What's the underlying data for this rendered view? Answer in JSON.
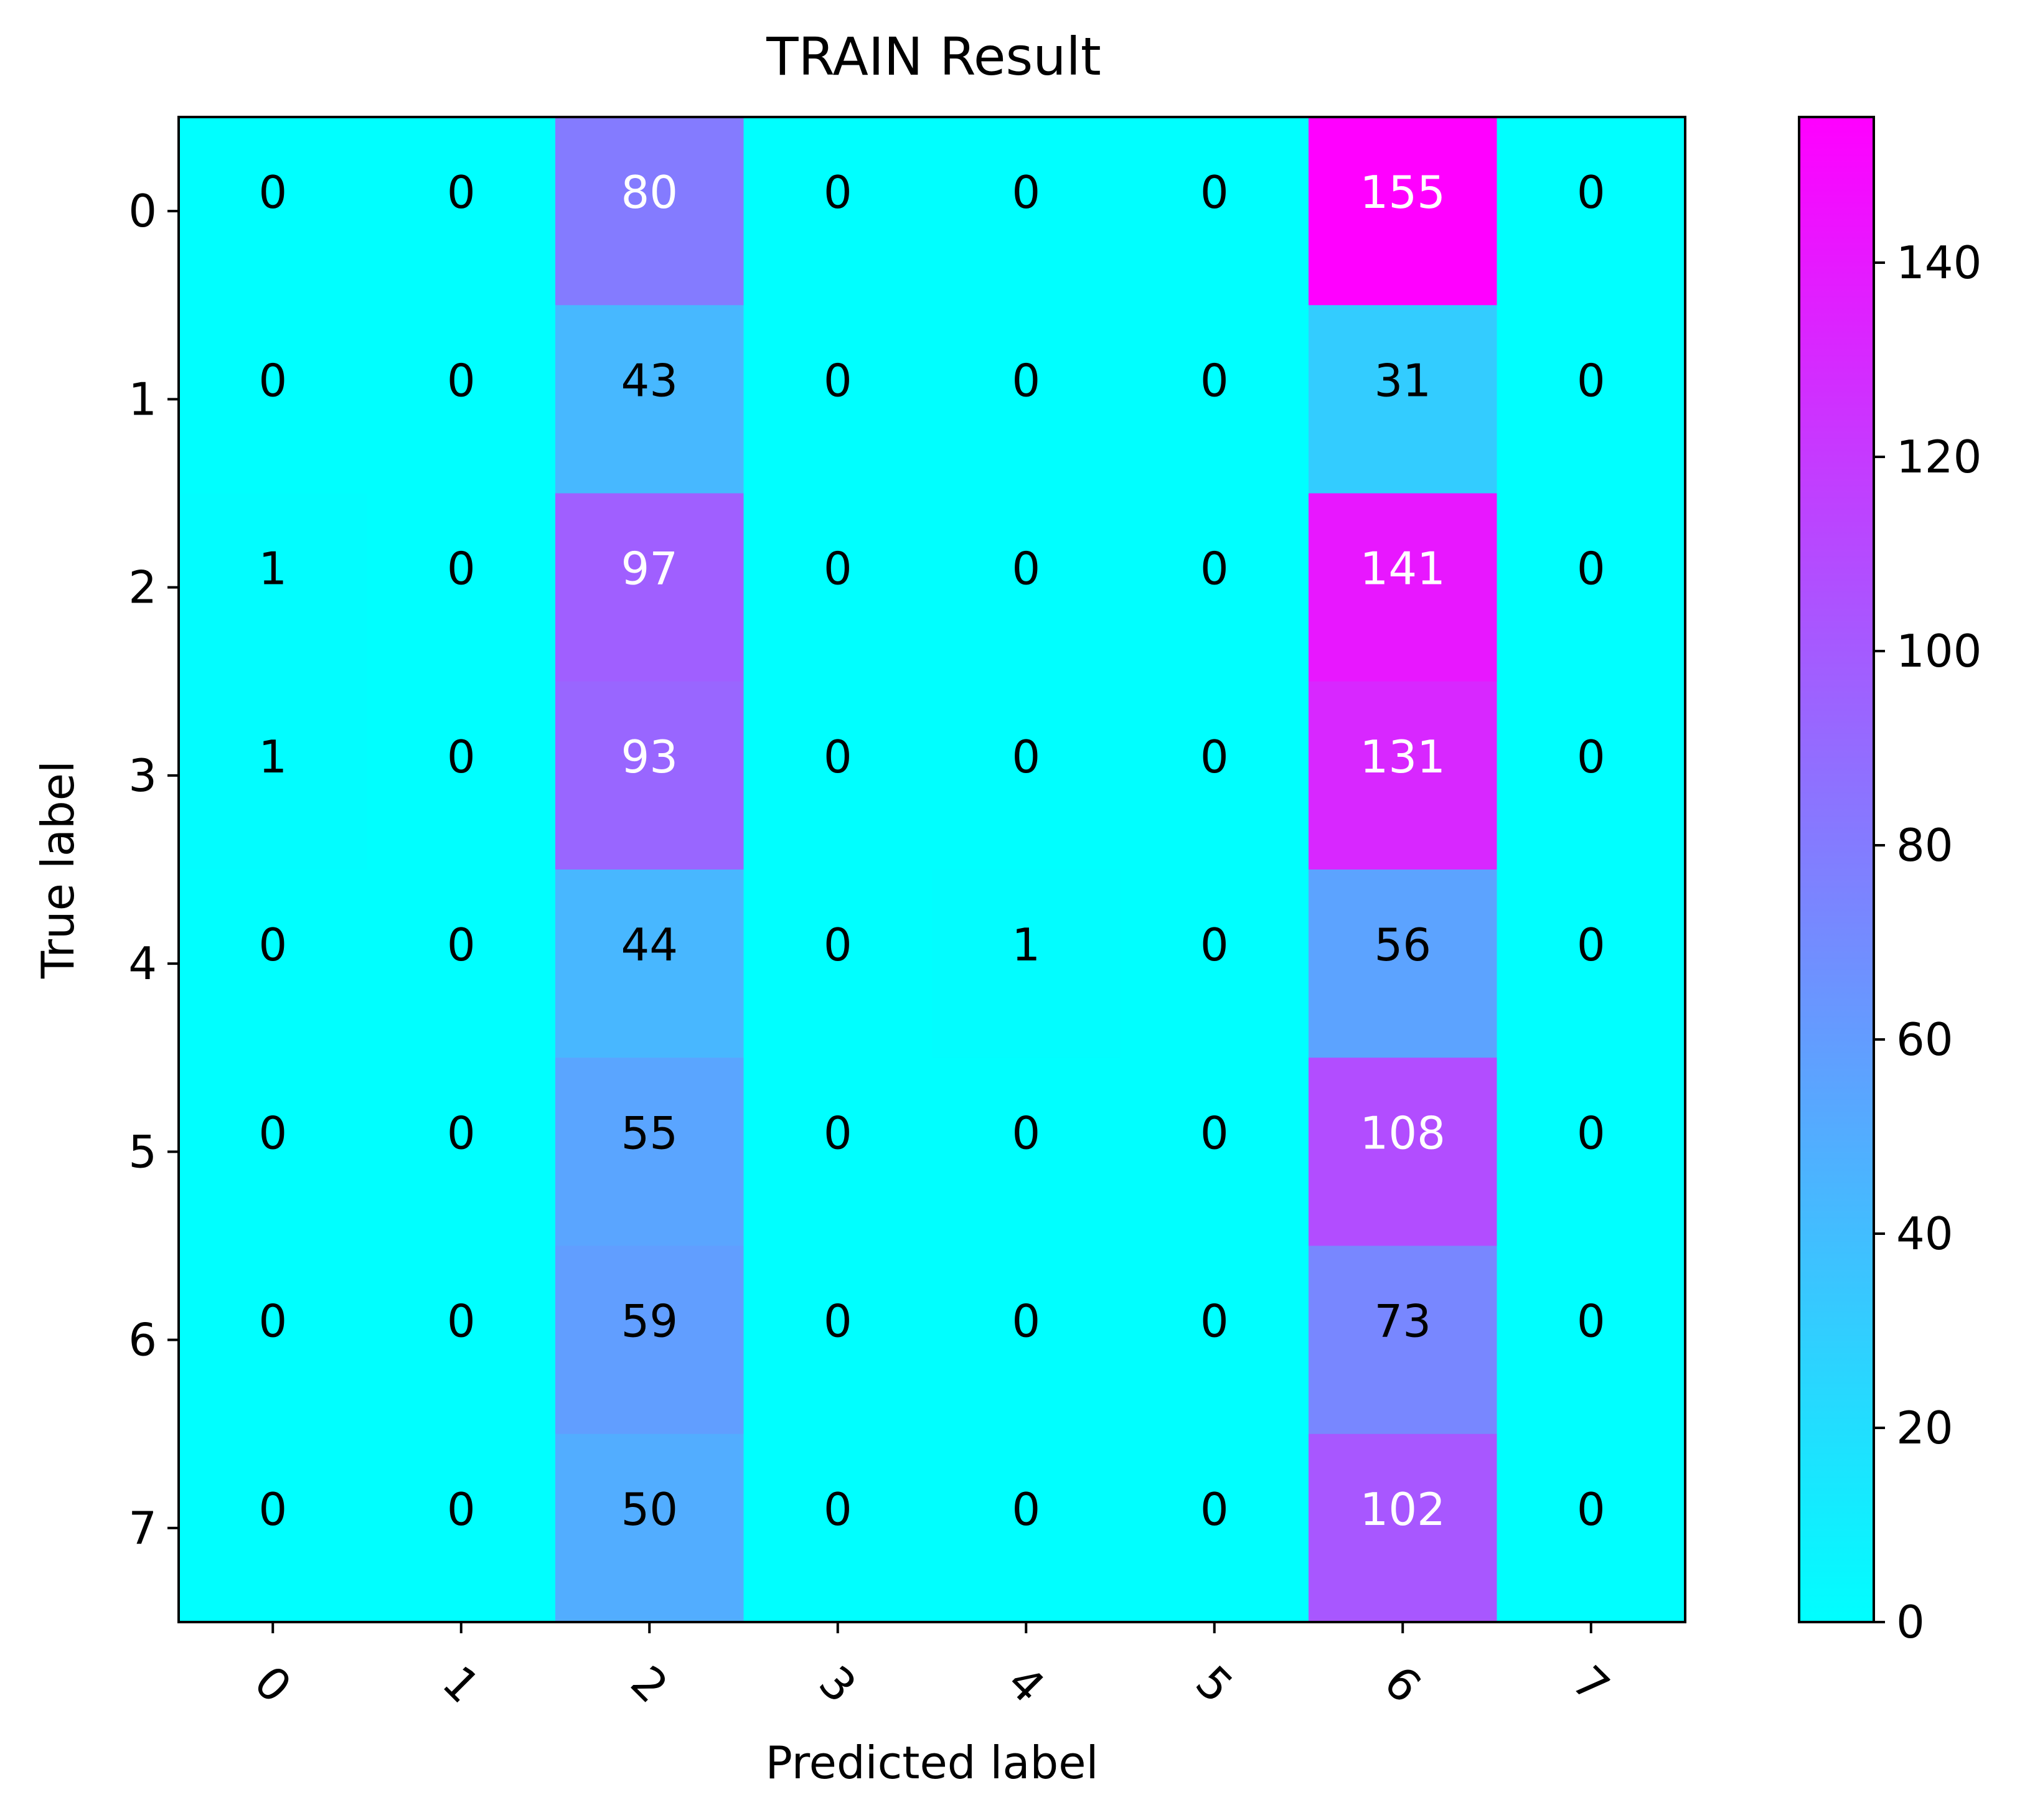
{
  "chart_data": {
    "type": "heatmap",
    "title": "TRAIN Result",
    "xlabel": "Predicted label",
    "ylabel": "True label",
    "x_categories": [
      "0",
      "1",
      "2",
      "3",
      "4",
      "5",
      "6",
      "7"
    ],
    "y_categories": [
      "0",
      "1",
      "2",
      "3",
      "4",
      "5",
      "6",
      "7"
    ],
    "matrix": [
      [
        0,
        0,
        80,
        0,
        0,
        0,
        155,
        0
      ],
      [
        0,
        0,
        43,
        0,
        0,
        0,
        31,
        0
      ],
      [
        1,
        0,
        97,
        0,
        0,
        0,
        141,
        0
      ],
      [
        1,
        0,
        93,
        0,
        0,
        0,
        131,
        0
      ],
      [
        0,
        0,
        44,
        0,
        1,
        0,
        56,
        0
      ],
      [
        0,
        0,
        55,
        0,
        0,
        0,
        108,
        0
      ],
      [
        0,
        0,
        59,
        0,
        0,
        0,
        73,
        0
      ],
      [
        0,
        0,
        50,
        0,
        0,
        0,
        102,
        0
      ]
    ],
    "colormap": "cool",
    "colormap_start": "#00ffff",
    "colormap_end": "#ff00ff",
    "value_range": [
      0,
      155
    ],
    "colorbar_ticks": [
      0,
      20,
      40,
      60,
      80,
      100,
      120,
      140
    ],
    "xtick_rotation": "45 degrees",
    "annotation_dark_color": "#000000",
    "annotation_light_color": "#ffffff",
    "annotation_threshold": 77.5,
    "grid": false
  }
}
